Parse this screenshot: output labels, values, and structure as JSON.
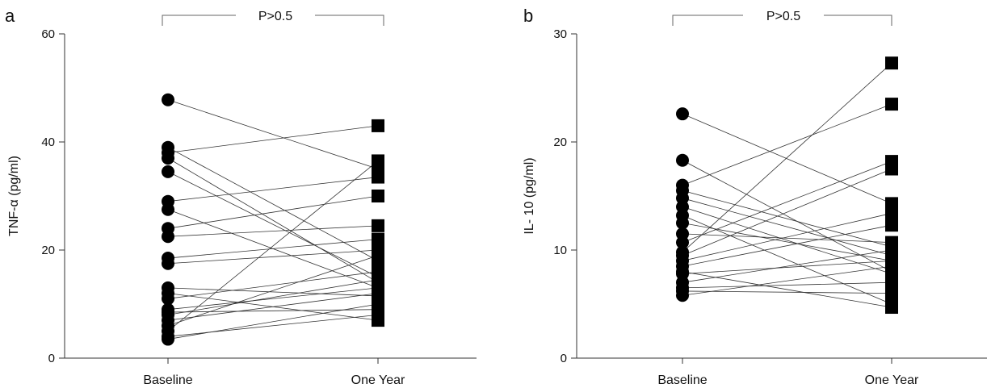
{
  "chart_data": [
    {
      "type": "line",
      "panel_label": "a",
      "ylabel": "TNF-α (pg/ml)",
      "ylim": [
        0,
        60
      ],
      "yticks": [
        "0",
        "20",
        "40",
        "60"
      ],
      "categories": [
        "Baseline",
        "One Year"
      ],
      "annotation": "P>0.5",
      "grid": false,
      "marker_baseline": "circle",
      "marker_oneyear": "square",
      "pairs": [
        [
          47.8,
          35.0
        ],
        [
          39.0,
          18.0
        ],
        [
          38.0,
          43.0
        ],
        [
          37.0,
          14.0
        ],
        [
          34.5,
          15.0
        ],
        [
          29.0,
          33.5
        ],
        [
          27.5,
          13.0
        ],
        [
          24.0,
          30.0
        ],
        [
          22.5,
          24.5
        ],
        [
          18.5,
          22.0
        ],
        [
          17.5,
          20.0
        ],
        [
          13.0,
          11.5
        ],
        [
          11.0,
          16.0
        ],
        [
          9.0,
          13.0
        ],
        [
          8.0,
          14.5
        ],
        [
          7.0,
          12.0
        ],
        [
          6.0,
          19.0
        ],
        [
          5.0,
          36.5
        ],
        [
          4.0,
          8.0
        ],
        [
          3.5,
          10.0
        ],
        [
          8.5,
          9.0
        ],
        [
          12.0,
          7.0
        ]
      ]
    },
    {
      "type": "line",
      "panel_label": "b",
      "ylabel": "IL- 10 (pg/ml)",
      "ylim": [
        0,
        30
      ],
      "yticks": [
        "0",
        "10",
        "20",
        "30"
      ],
      "categories": [
        "Baseline",
        "One Year"
      ],
      "annotation": "P>0.5",
      "grid": false,
      "marker_baseline": "circle",
      "marker_oneyear": "square",
      "pairs": [
        [
          22.6,
          14.3
        ],
        [
          18.3,
          8.0
        ],
        [
          16.0,
          23.5
        ],
        [
          15.5,
          10.3
        ],
        [
          14.8,
          9.5
        ],
        [
          14.0,
          7.8
        ],
        [
          13.2,
          5.0
        ],
        [
          12.5,
          9.0
        ],
        [
          11.5,
          10.7
        ],
        [
          10.7,
          18.2
        ],
        [
          9.8,
          27.3
        ],
        [
          9.5,
          17.5
        ],
        [
          9.0,
          13.4
        ],
        [
          8.5,
          12.3
        ],
        [
          7.8,
          9.0
        ],
        [
          7.0,
          10.0
        ],
        [
          6.2,
          6.0
        ],
        [
          5.8,
          8.5
        ],
        [
          6.5,
          7.0
        ],
        [
          8.0,
          4.7
        ]
      ]
    }
  ]
}
